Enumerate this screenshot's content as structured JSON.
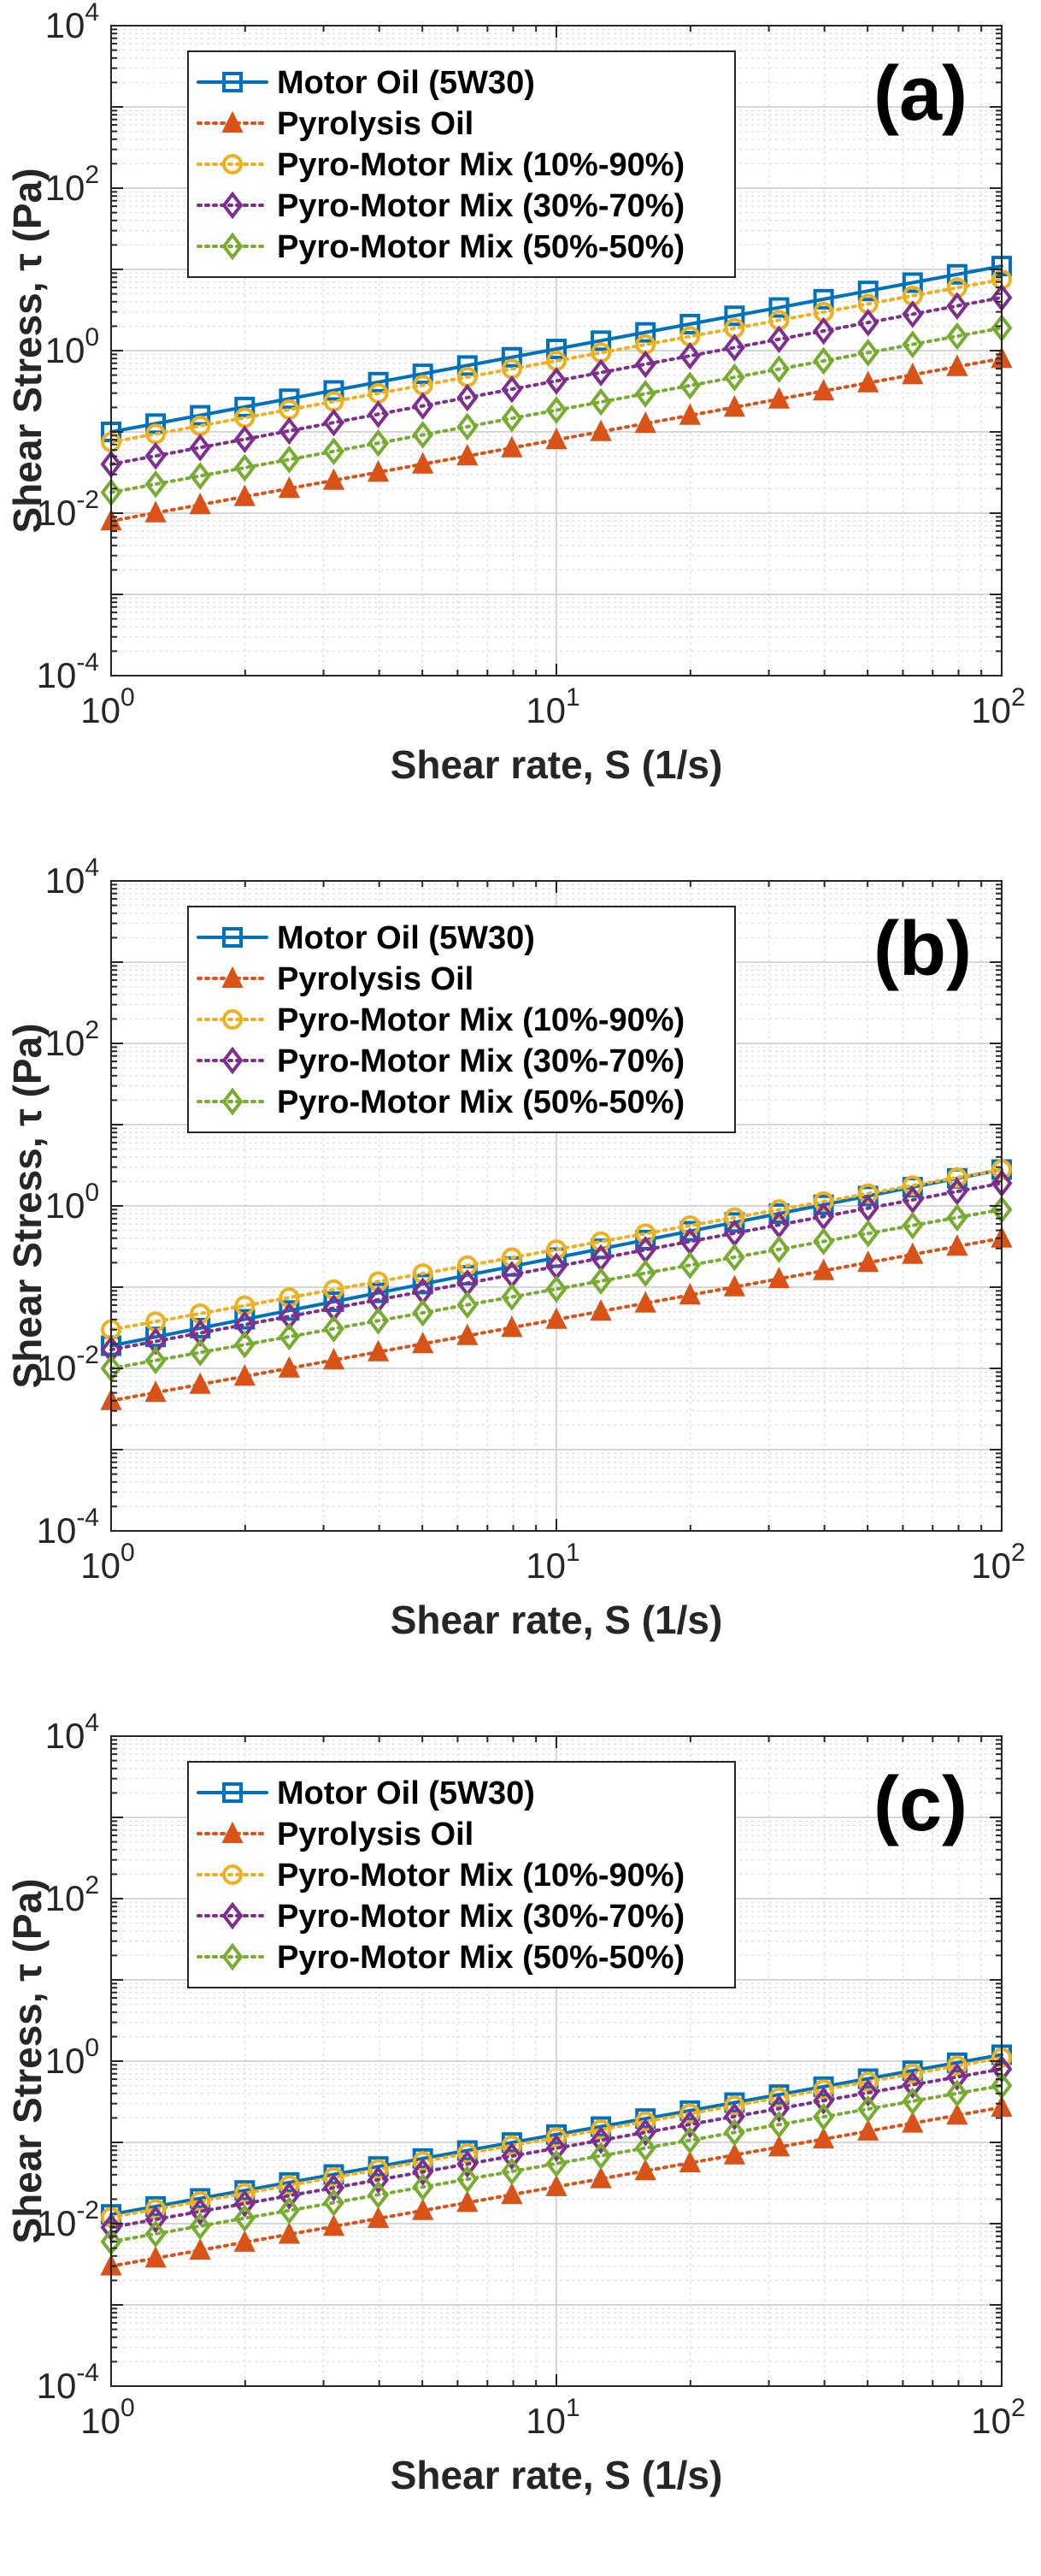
{
  "chart_data": [
    {
      "type": "line",
      "panel": "(a)",
      "xscale": "log",
      "yscale": "log",
      "xlim": [
        1,
        100
      ],
      "ylim": [
        0.0001,
        10000
      ],
      "xticks": [
        1,
        10,
        100
      ],
      "yticks": [
        0.0001,
        0.01,
        1,
        100,
        10000
      ],
      "xlabel": "Shear rate, S (1/s)",
      "ylabel": "Shear Stress, τ (Pa)",
      "grid": true,
      "legend_position": "top-left",
      "series": [
        {
          "name": "Motor Oil (5W30)",
          "color": "#0072BD",
          "marker": "square",
          "line": "solid",
          "at_x1": 0.1,
          "at_x100": 11
        },
        {
          "name": "Pyrolysis Oil",
          "color": "#D95319",
          "marker": "triangle",
          "line": "dotted",
          "at_x1": 0.008,
          "at_x100": 0.8
        },
        {
          "name": "Pyro-Motor Mix (10%-90%)",
          "color": "#EDB120",
          "marker": "circle",
          "line": "dotted",
          "at_x1": 0.075,
          "at_x100": 7.5
        },
        {
          "name": "Pyro-Motor Mix (30%-70%)",
          "color": "#7E2F8E",
          "marker": "diamond",
          "line": "dotted",
          "at_x1": 0.04,
          "at_x100": 4.5
        },
        {
          "name": "Pyro-Motor Mix (50%-50%)",
          "color": "#77AC30",
          "marker": "diamond",
          "line": "dotted",
          "at_x1": 0.018,
          "at_x100": 1.9
        }
      ]
    },
    {
      "type": "line",
      "panel": "(b)",
      "xscale": "log",
      "yscale": "log",
      "xlim": [
        1,
        100
      ],
      "ylim": [
        0.0001,
        10000
      ],
      "xticks": [
        1,
        10,
        100
      ],
      "yticks": [
        0.0001,
        0.01,
        1,
        100,
        10000
      ],
      "xlabel": "Shear rate, S (1/s)",
      "ylabel": "Shear Stress, τ (Pa)",
      "grid": true,
      "legend_position": "top-left",
      "series": [
        {
          "name": "Motor Oil (5W30)",
          "color": "#0072BD",
          "marker": "square",
          "line": "solid",
          "at_x1": 0.019,
          "at_x100": 2.8
        },
        {
          "name": "Pyrolysis Oil",
          "color": "#D95319",
          "marker": "triangle",
          "line": "dotted",
          "at_x1": 0.004,
          "at_x100": 0.4
        },
        {
          "name": "Pyro-Motor Mix (10%-90%)",
          "color": "#EDB120",
          "marker": "circle",
          "line": "dotted",
          "at_x1": 0.03,
          "at_x100": 2.8
        },
        {
          "name": "Pyro-Motor Mix (30%-70%)",
          "color": "#7E2F8E",
          "marker": "diamond",
          "line": "dotted",
          "at_x1": 0.017,
          "at_x100": 1.9
        },
        {
          "name": "Pyro-Motor Mix (50%-50%)",
          "color": "#77AC30",
          "marker": "diamond",
          "line": "dotted",
          "at_x1": 0.01,
          "at_x100": 0.9
        }
      ]
    },
    {
      "type": "line",
      "panel": "(c)",
      "xscale": "log",
      "yscale": "log",
      "xlim": [
        1,
        100
      ],
      "ylim": [
        0.0001,
        10000
      ],
      "xticks": [
        1,
        10,
        100
      ],
      "yticks": [
        0.0001,
        0.01,
        1,
        100,
        10000
      ],
      "xlabel": "Shear rate, S (1/s)",
      "ylabel": "Shear Stress, τ (Pa)",
      "grid": true,
      "legend_position": "top-left",
      "series": [
        {
          "name": "Motor Oil (5W30)",
          "color": "#0072BD",
          "marker": "square",
          "line": "solid",
          "at_x1": 0.013,
          "at_x100": 1.2
        },
        {
          "name": "Pyrolysis Oil",
          "color": "#D95319",
          "marker": "triangle",
          "line": "dotted",
          "at_x1": 0.003,
          "at_x100": 0.27
        },
        {
          "name": "Pyro-Motor Mix (10%-90%)",
          "color": "#EDB120",
          "marker": "circle",
          "line": "dotted",
          "at_x1": 0.012,
          "at_x100": 1.1
        },
        {
          "name": "Pyro-Motor Mix (30%-70%)",
          "color": "#7E2F8E",
          "marker": "diamond",
          "line": "dotted",
          "at_x1": 0.009,
          "at_x100": 0.8
        },
        {
          "name": "Pyro-Motor Mix (50%-50%)",
          "color": "#77AC30",
          "marker": "diamond",
          "line": "dotted",
          "at_x1": 0.006,
          "at_x100": 0.5
        }
      ]
    }
  ]
}
